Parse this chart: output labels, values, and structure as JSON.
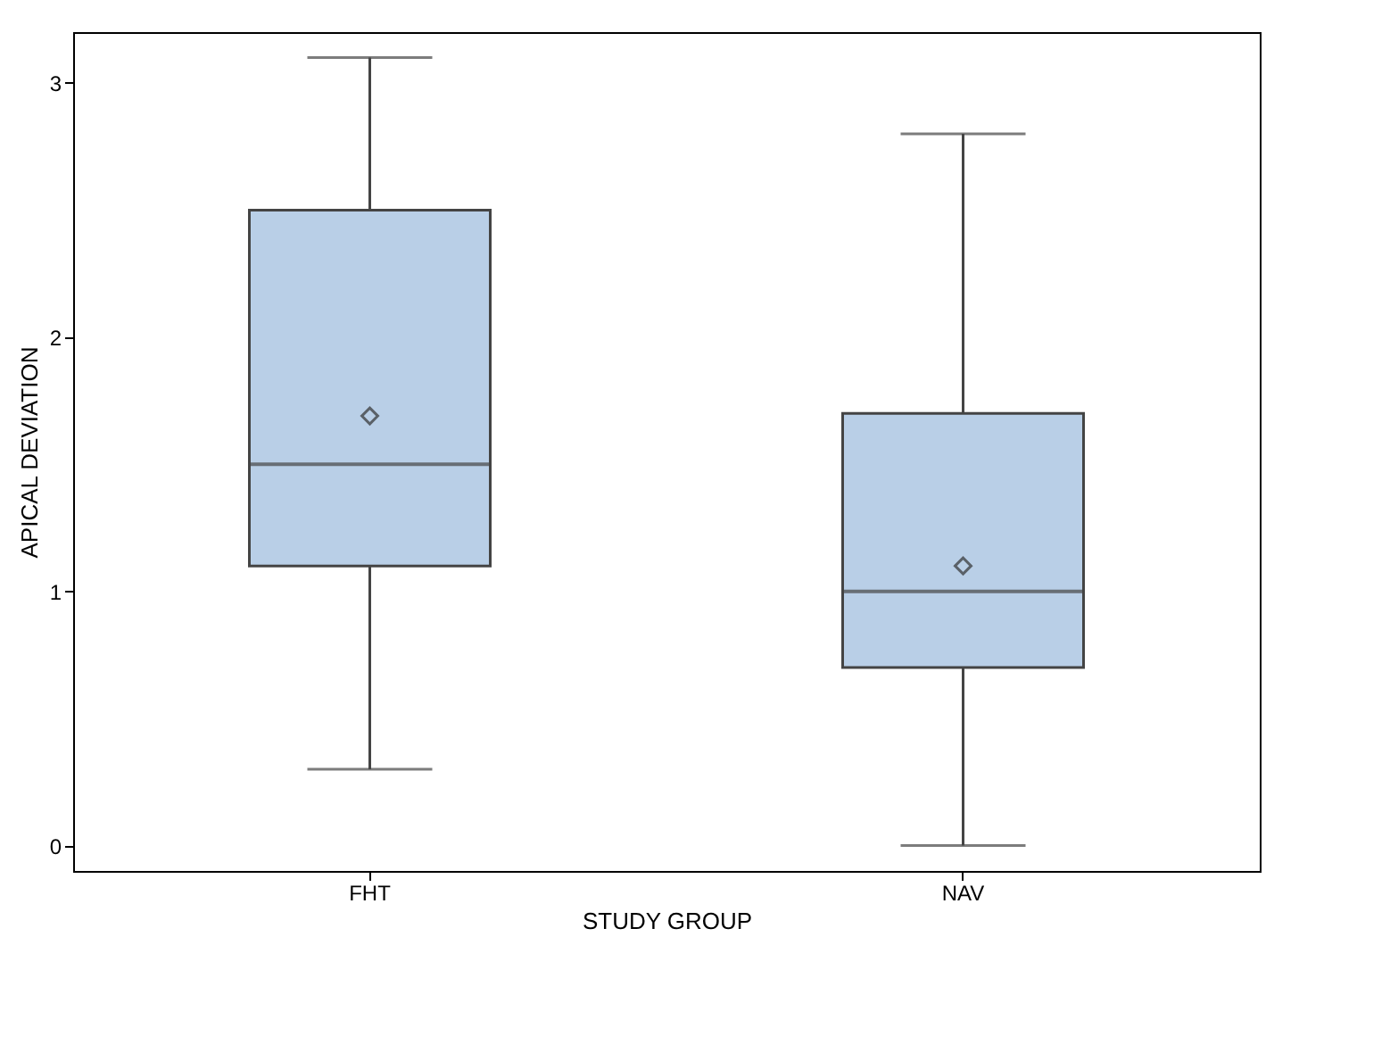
{
  "chart_data": {
    "type": "box",
    "xlabel": "STUDY GROUP",
    "ylabel": "APICAL DEVIATION",
    "categories": [
      "FHT",
      "NAV"
    ],
    "series": [
      {
        "color": "#b9cfe7",
        "boxes": [
          {
            "low": 0.3,
            "q1": 1.1,
            "median": 1.5,
            "q3": 2.5,
            "high": 3.1,
            "mean": 1.69
          },
          {
            "low": 0.0,
            "q1": 0.7,
            "median": 1.0,
            "q3": 1.7,
            "high": 2.8,
            "mean": 1.1
          }
        ]
      }
    ],
    "ylim": [
      -0.1,
      3.2
    ],
    "yticks": [
      0,
      1,
      2,
      3
    ],
    "grid": false,
    "marker": "diamond"
  }
}
